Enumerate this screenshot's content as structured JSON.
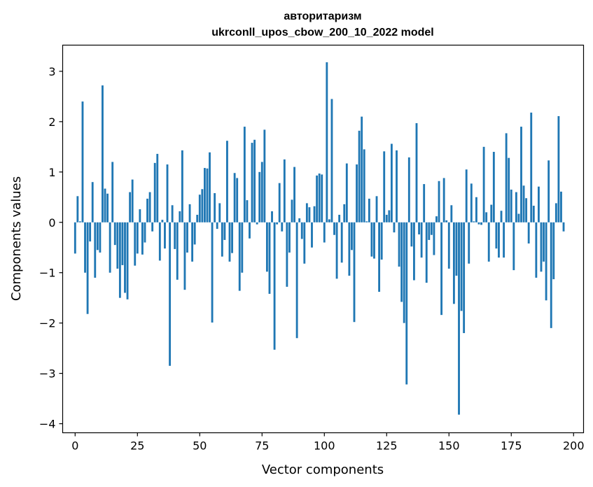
{
  "chart_data": {
    "type": "bar",
    "title_line1": "авторитаризм",
    "title_line2": "ukrconll_upos_cbow_200_10_2022 model",
    "xlabel": "Vector components",
    "ylabel": "Components values",
    "xlim": [
      -5,
      204
    ],
    "ylim": [
      -4.18,
      3.52
    ],
    "xticks": [
      0,
      25,
      50,
      75,
      100,
      125,
      150,
      175,
      200
    ],
    "xtick_labels": [
      "0",
      "25",
      "50",
      "75",
      "100",
      "125",
      "150",
      "175",
      "200"
    ],
    "yticks": [
      3,
      2,
      1,
      0,
      -1,
      -2,
      -3,
      -4
    ],
    "ytick_labels": [
      "3",
      "2",
      "1",
      "0",
      "−1",
      "−2",
      "−3",
      "−4"
    ],
    "bar_color": "#1f77b4",
    "grid": false,
    "values": [
      -0.62,
      0.52,
      0.02,
      2.4,
      -1.0,
      -1.82,
      -0.38,
      0.8,
      -1.1,
      -0.55,
      -0.6,
      2.72,
      0.67,
      0.57,
      -1.0,
      1.2,
      -0.45,
      -0.92,
      -1.5,
      -0.85,
      -1.4,
      -1.53,
      0.6,
      0.85,
      -0.86,
      -0.62,
      0.26,
      -0.64,
      -0.4,
      0.47,
      0.6,
      -0.18,
      1.18,
      1.36,
      -0.76,
      0.05,
      -0.52,
      1.15,
      -2.85,
      0.34,
      -0.53,
      -1.14,
      0.22,
      1.43,
      -1.34,
      -0.6,
      0.36,
      -0.78,
      -0.44,
      0.15,
      0.55,
      0.66,
      1.08,
      1.07,
      1.39,
      -1.99,
      0.58,
      -0.13,
      0.38,
      -0.68,
      -0.35,
      1.62,
      -0.78,
      -0.61,
      0.98,
      0.88,
      -1.36,
      -1.0,
      1.9,
      0.44,
      -0.32,
      1.58,
      1.64,
      -0.04,
      1.0,
      1.2,
      1.84,
      -0.98,
      -1.42,
      0.22,
      -2.53,
      -0.04,
      0.78,
      -0.18,
      1.25,
      -1.28,
      -0.6,
      0.45,
      1.1,
      -2.3,
      0.08,
      -0.33,
      -0.82,
      0.38,
      0.3,
      -0.5,
      0.32,
      0.93,
      0.97,
      0.95,
      -0.4,
      3.18,
      0.06,
      2.45,
      -0.25,
      -1.12,
      0.15,
      -0.8,
      0.36,
      1.17,
      -1.06,
      -0.55,
      -1.98,
      1.15,
      1.82,
      2.1,
      1.45,
      0.02,
      0.47,
      -0.68,
      -0.72,
      0.52,
      -1.38,
      -0.74,
      1.41,
      0.15,
      0.24,
      1.56,
      -0.2,
      1.43,
      -0.88,
      -1.58,
      -2.0,
      -3.22,
      1.29,
      -0.48,
      -1.15,
      1.97,
      -0.24,
      -0.7,
      0.76,
      -1.2,
      -0.35,
      -0.25,
      -0.65,
      0.12,
      0.82,
      -1.84,
      0.88,
      0.04,
      -0.92,
      0.34,
      -1.62,
      -1.06,
      -3.82,
      -1.76,
      -2.2,
      1.05,
      -0.82,
      0.77,
      0.02,
      0.5,
      -0.04,
      -0.05,
      1.5,
      0.2,
      -0.78,
      0.35,
      1.4,
      -0.52,
      -0.7,
      0.23,
      -0.7,
      1.77,
      1.28,
      0.65,
      -0.95,
      0.6,
      0.17,
      1.9,
      0.73,
      0.48,
      -0.42,
      2.18,
      0.33,
      -1.1,
      0.71,
      -0.98,
      -0.78,
      -1.55,
      1.23,
      -2.1,
      -1.13,
      0.38,
      2.11,
      0.61,
      -0.18
    ]
  }
}
